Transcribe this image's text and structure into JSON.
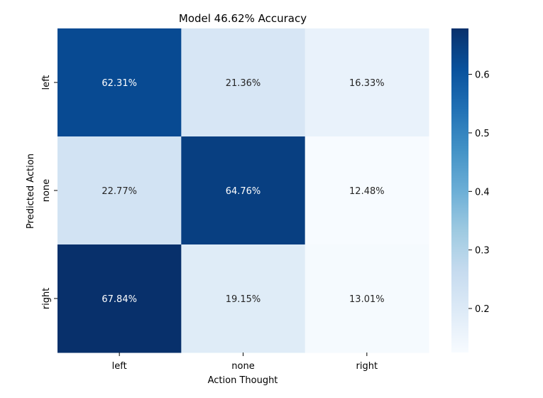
{
  "chart_data": {
    "type": "heatmap",
    "title": "Model 46.62% Accuracy",
    "xlabel": "Action Thought",
    "ylabel": "Predicted Action",
    "x_categories": [
      "left",
      "none",
      "right"
    ],
    "y_categories": [
      "left",
      "none",
      "right"
    ],
    "values": [
      [
        0.6231,
        0.2136,
        0.1633
      ],
      [
        0.2277,
        0.6476,
        0.1248
      ],
      [
        0.6784,
        0.1915,
        0.1301
      ]
    ],
    "cell_labels": [
      [
        "62.31%",
        "21.36%",
        "16.33%"
      ],
      [
        "22.77%",
        "64.76%",
        "12.48%"
      ],
      [
        "67.84%",
        "19.15%",
        "13.01%"
      ]
    ],
    "colorbar": {
      "vmin": 0.1248,
      "vmax": 0.6784,
      "ticks": [
        0.2,
        0.3,
        0.4,
        0.5,
        0.6
      ],
      "tick_labels": [
        "0.2",
        "0.3",
        "0.4",
        "0.5",
        "0.6"
      ]
    },
    "colormap": "Blues",
    "colors": {
      "light_text": "#ffffff",
      "dark_text": "#262626"
    }
  }
}
